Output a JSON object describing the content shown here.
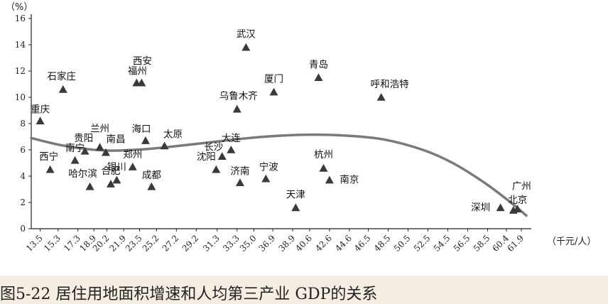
{
  "chart_data": {
    "type": "scatter",
    "title": "",
    "y_unit_label": "（%）",
    "x_unit_label": "（千元/人）",
    "xlim": [
      12.6,
      62.9
    ],
    "ylim": [
      0,
      16
    ],
    "y_ticks": [
      0,
      2,
      4,
      6,
      8,
      10,
      12,
      14,
      16
    ],
    "x_ticks": [
      "13.5",
      "15.3",
      "17.3",
      "18.9",
      "20.2",
      "21.9",
      "23.5",
      "25.2",
      "27.2",
      "29.2",
      "31.3",
      "33.3",
      "35.0",
      "36.9",
      "38.9",
      "40.6",
      "42.6",
      "44.6",
      "46.5",
      "48.5",
      "50.5",
      "52.5",
      "54.5",
      "56.5",
      "58.5",
      "60.4",
      "61.9"
    ],
    "x_tick_values": [
      13.5,
      15.3,
      17.3,
      18.9,
      20.2,
      21.9,
      23.5,
      25.2,
      27.2,
      29.2,
      31.3,
      33.3,
      35.0,
      36.9,
      38.9,
      40.6,
      42.6,
      44.6,
      46.5,
      48.5,
      50.5,
      52.5,
      54.5,
      56.5,
      58.5,
      60.4,
      61.9
    ],
    "grid": false,
    "points": [
      {
        "name": "重庆",
        "x": 13.5,
        "y": 8.2
      },
      {
        "name": "西宁",
        "x": 14.5,
        "y": 4.5
      },
      {
        "name": "石家庄",
        "x": 15.8,
        "y": 10.6
      },
      {
        "name": "南宁",
        "x": 17.0,
        "y": 5.2
      },
      {
        "name": "贵阳",
        "x": 18.0,
        "y": 5.9
      },
      {
        "name": "哈尔滨",
        "x": 18.5,
        "y": 3.2
      },
      {
        "name": "兰州",
        "x": 19.5,
        "y": 6.2
      },
      {
        "name": "南昌",
        "x": 20.1,
        "y": 5.8
      },
      {
        "name": "合肥",
        "x": 20.6,
        "y": 3.4
      },
      {
        "name": "银川",
        "x": 21.2,
        "y": 3.7
      },
      {
        "name": "郑州",
        "x": 22.8,
        "y": 4.7
      },
      {
        "name": "西安",
        "x": 23.2,
        "y": 11.1
      },
      {
        "name": "福州",
        "x": 23.7,
        "y": 11.1
      },
      {
        "name": "海口",
        "x": 24.1,
        "y": 6.7
      },
      {
        "name": "成都",
        "x": 24.7,
        "y": 3.2
      },
      {
        "name": "太原",
        "x": 26.0,
        "y": 6.3
      },
      {
        "name": "沈阳",
        "x": 31.2,
        "y": 4.5
      },
      {
        "name": "长沙",
        "x": 31.8,
        "y": 5.5
      },
      {
        "name": "大连",
        "x": 32.7,
        "y": 6.0
      },
      {
        "name": "乌鲁木齐",
        "x": 33.3,
        "y": 9.1
      },
      {
        "name": "济南",
        "x": 33.6,
        "y": 3.5
      },
      {
        "name": "武汉",
        "x": 34.2,
        "y": 13.8
      },
      {
        "name": "宁波",
        "x": 36.2,
        "y": 3.8
      },
      {
        "name": "厦门",
        "x": 37.0,
        "y": 10.4
      },
      {
        "name": "天津",
        "x": 39.2,
        "y": 1.6
      },
      {
        "name": "青岛",
        "x": 41.5,
        "y": 11.5
      },
      {
        "name": "杭州",
        "x": 42.0,
        "y": 4.6
      },
      {
        "name": "南京",
        "x": 42.6,
        "y": 3.7
      },
      {
        "name": "呼和浩特",
        "x": 47.8,
        "y": 10.0
      },
      {
        "name": "深圳",
        "x": 59.8,
        "y": 1.6
      },
      {
        "name": "北京",
        "x": 61.1,
        "y": 1.4
      },
      {
        "name": "广州",
        "x": 61.5,
        "y": 1.5
      }
    ],
    "trend": [
      {
        "x": 12.6,
        "y": 6.9
      },
      {
        "x": 16.0,
        "y": 6.3
      },
      {
        "x": 20.0,
        "y": 5.95
      },
      {
        "x": 24.0,
        "y": 6.05
      },
      {
        "x": 28.0,
        "y": 6.35
      },
      {
        "x": 32.0,
        "y": 6.7
      },
      {
        "x": 36.0,
        "y": 7.0
      },
      {
        "x": 40.0,
        "y": 7.15
      },
      {
        "x": 44.0,
        "y": 7.1
      },
      {
        "x": 48.0,
        "y": 6.8
      },
      {
        "x": 52.0,
        "y": 6.0
      },
      {
        "x": 55.0,
        "y": 5.0
      },
      {
        "x": 58.0,
        "y": 3.6
      },
      {
        "x": 60.5,
        "y": 2.2
      },
      {
        "x": 62.4,
        "y": 1.0
      }
    ],
    "colors": {
      "marker": "#3a3a3a",
      "trend": "#7a7a7a",
      "axis": "#222222"
    }
  },
  "caption": "图5-22 居住用地面积增速和人均第三产业 GDP的关系",
  "colors": {
    "caption_bg": "#f6eee2"
  }
}
